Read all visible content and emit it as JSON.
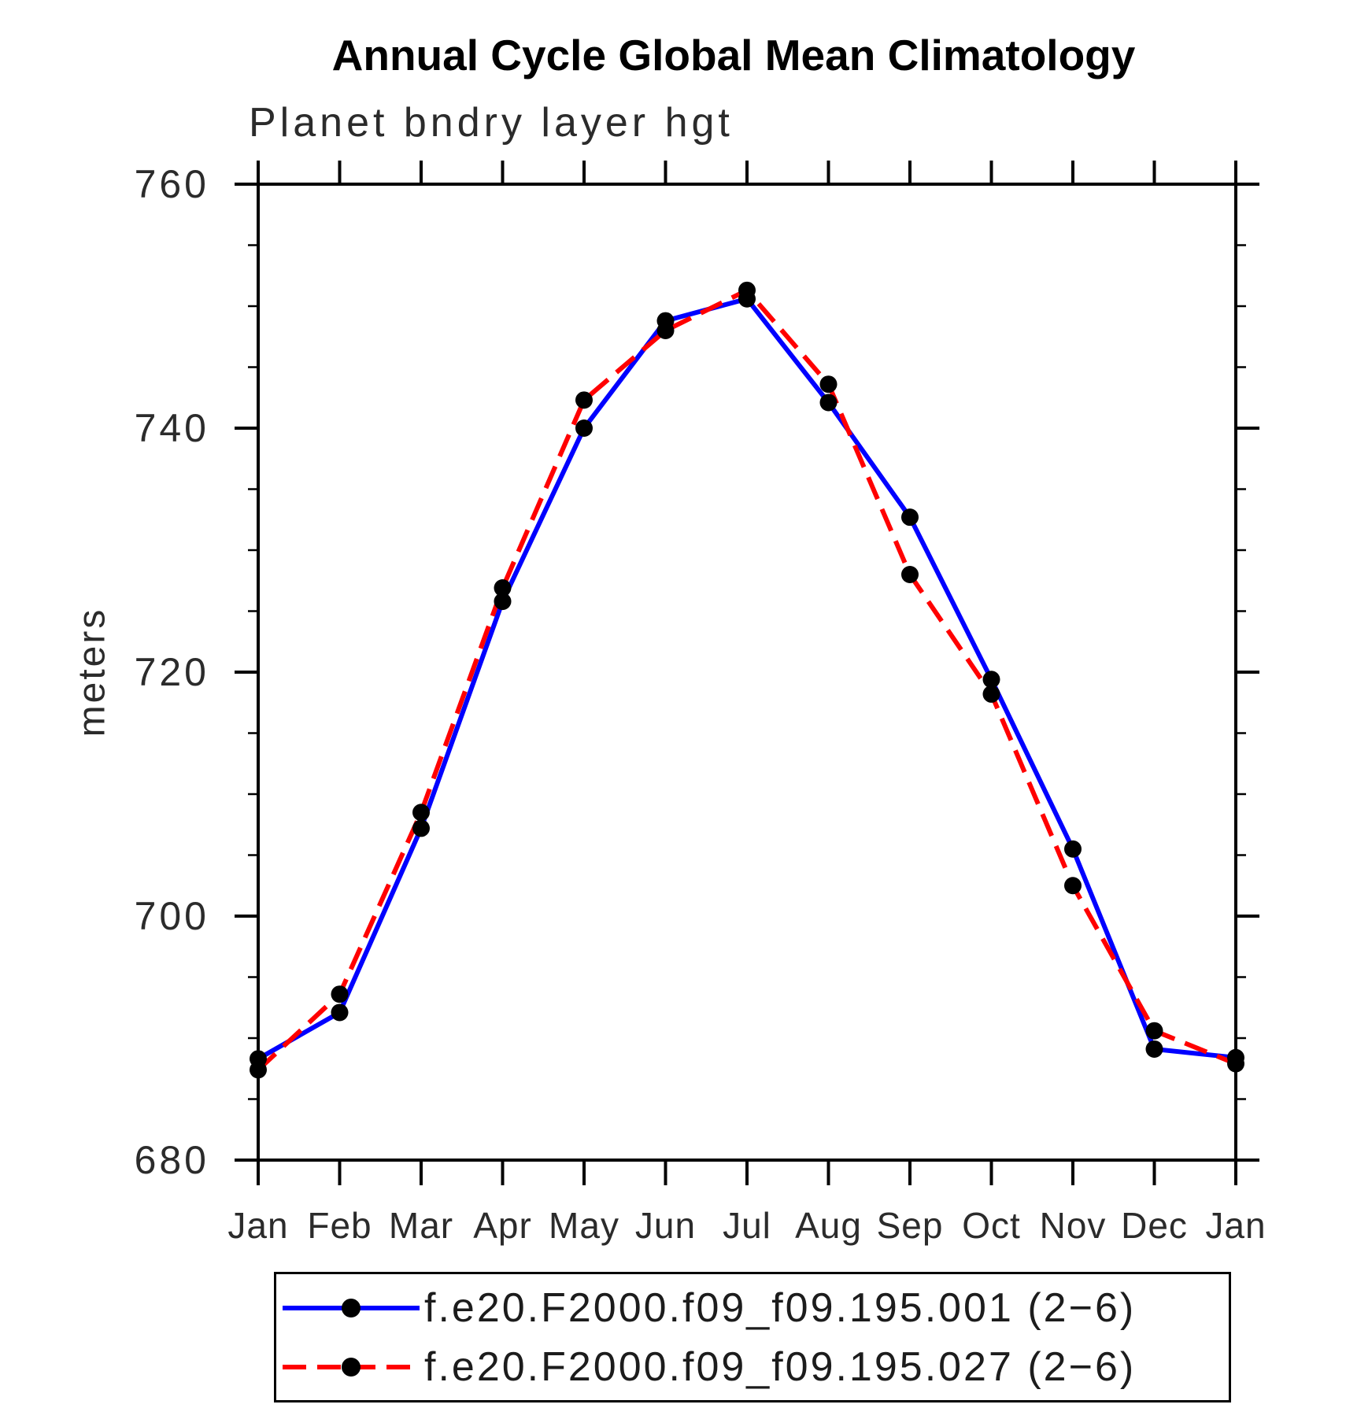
{
  "page": {
    "background": "#ffffff"
  },
  "chart_data": {
    "type": "line",
    "title": "Annual Cycle Global Mean Climatology",
    "subtitle": "Planet bndry layer hgt",
    "ylabel": "meters",
    "xlabel": "",
    "ylim": [
      680,
      760
    ],
    "ytick_step_major": 20,
    "ytick_step_minor": 5,
    "grid": "off",
    "legend_position": "bottom",
    "categories": [
      "Jan",
      "Feb",
      "Mar",
      "Apr",
      "May",
      "Jun",
      "Jul",
      "Aug",
      "Sep",
      "Oct",
      "Nov",
      "Dec",
      "Jan"
    ],
    "series": [
      {
        "name": "f.e20.F2000.f09_f09.195.001 (2−6)",
        "color": "#0000ff",
        "line_style": "solid",
        "marker": "filled-circle",
        "marker_color": "#000000",
        "values": [
          688.3,
          692.1,
          707.2,
          725.8,
          740.0,
          748.8,
          750.6,
          742.1,
          732.7,
          719.4,
          705.5,
          689.1,
          688.4
        ]
      },
      {
        "name": "f.e20.F2000.f09_f09.195.027 (2−6)",
        "color": "#ff0000",
        "line_style": "dashed",
        "marker": "filled-circle",
        "marker_color": "#000000",
        "values": [
          687.4,
          693.6,
          708.5,
          726.9,
          742.3,
          748.0,
          751.3,
          743.6,
          728.0,
          718.2,
          702.5,
          690.6,
          687.9
        ]
      }
    ]
  }
}
